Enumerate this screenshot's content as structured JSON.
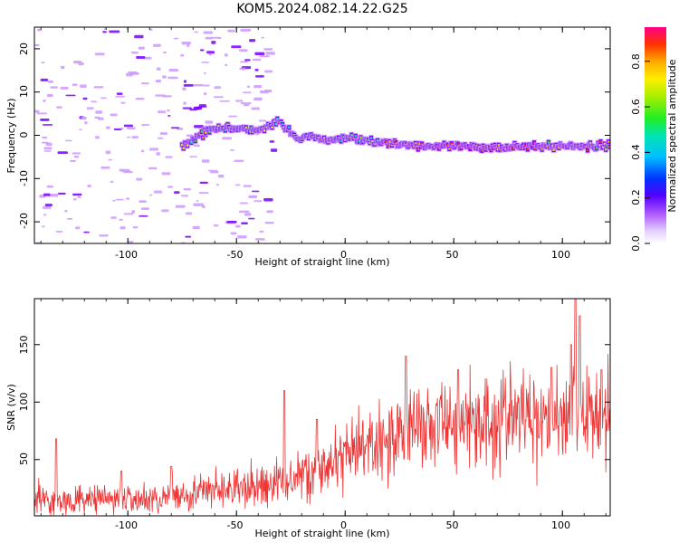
{
  "title": "KOM5.2024.082.14.22.G25",
  "top": {
    "type": "heatmap",
    "xlabel": "Height of straight line (km)",
    "ylabel": "Frequency (Hz)",
    "xlim": [
      -143,
      122
    ],
    "ylim": [
      -25,
      25
    ],
    "xticks": [
      "-100",
      "-50",
      "0",
      "50",
      "100"
    ],
    "yticks": [
      "20",
      "10",
      "0",
      "-10",
      "-20"
    ],
    "track": [
      [
        -75,
        -2.5
      ],
      [
        -60,
        2
      ],
      [
        -50,
        1.5
      ],
      [
        -40,
        1
      ],
      [
        -30,
        3
      ],
      [
        -22,
        -1
      ],
      [
        -15,
        0
      ],
      [
        -8,
        -1.5
      ],
      [
        0,
        -0.5
      ],
      [
        10,
        -1
      ],
      [
        20,
        -2
      ],
      [
        40,
        -2.5
      ],
      [
        60,
        -2.8
      ],
      [
        80,
        -2.6
      ],
      [
        100,
        -2.5
      ],
      [
        120,
        -2.5
      ]
    ]
  },
  "colorbar": {
    "label": "Normalized spectral amplitude",
    "ticks": [
      "0.8",
      "0.6",
      "0.4",
      "0.2",
      "0.0"
    ],
    "range": [
      0,
      0.95
    ],
    "colors": [
      "#ffffff",
      "#cc99ff",
      "#7700ff",
      "#2222ff",
      "#00bfff",
      "#00e5cc",
      "#22ee22",
      "#aaee00",
      "#ffee00",
      "#ffaa00",
      "#ff3300",
      "#ff0088"
    ]
  },
  "chart_data": {
    "type": "line",
    "xlabel": "Height of straight line (km)",
    "ylabel": "SNR (v/v)",
    "xlim": [
      -143,
      122
    ],
    "ylim": [
      1,
      190
    ],
    "xticks": [
      "-100",
      "-50",
      "0",
      "50",
      "100"
    ],
    "yticks": [
      "150",
      "100",
      "50"
    ],
    "color": "#ee3333",
    "x": [
      -143,
      -135,
      -125,
      -115,
      -105,
      -95,
      -85,
      -75,
      -65,
      -55,
      -45,
      -35,
      -25,
      -15,
      -5,
      5,
      15,
      25,
      35,
      45,
      55,
      65,
      75,
      85,
      95,
      105,
      115,
      122
    ],
    "y": [
      18,
      15,
      14,
      15,
      16,
      15,
      16,
      20,
      22,
      24,
      25,
      28,
      33,
      40,
      46,
      55,
      66,
      74,
      80,
      82,
      83,
      85,
      86,
      88,
      90,
      88,
      92,
      85
    ],
    "peaks": [
      [
        -133,
        68
      ],
      [
        -103,
        40
      ],
      [
        -80,
        44
      ],
      [
        -28,
        110
      ],
      [
        -13,
        85
      ],
      [
        28,
        140
      ],
      [
        52,
        128
      ],
      [
        95,
        130
      ],
      [
        104,
        150
      ],
      [
        106,
        190
      ],
      [
        108,
        175
      ],
      [
        118,
        128
      ]
    ]
  }
}
